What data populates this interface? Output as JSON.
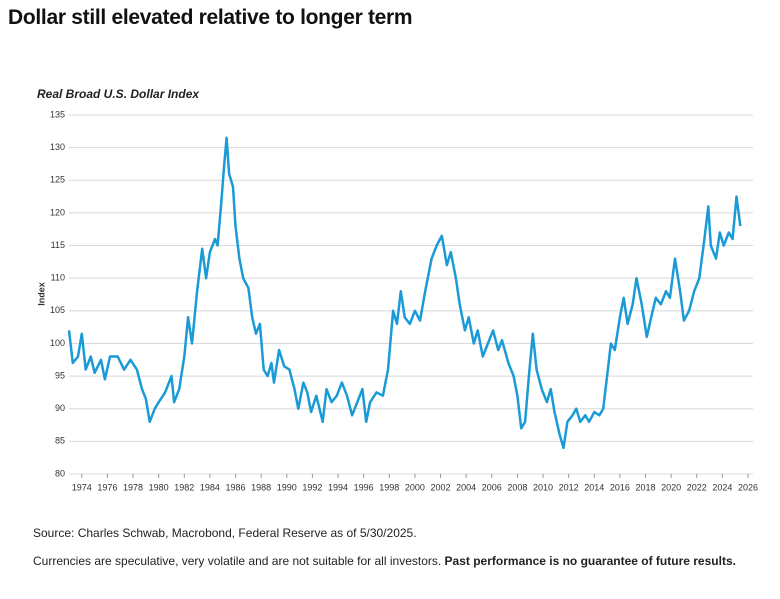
{
  "title": "Dollar still elevated relative to longer term",
  "chart_data": {
    "type": "line",
    "title": "Real Broad U.S. Dollar Index",
    "y_label": "Index",
    "x": [
      1973.0,
      1973.3,
      1973.7,
      1974.0,
      1974.3,
      1974.7,
      1975.0,
      1975.5,
      1975.8,
      1976.2,
      1976.8,
      1977.3,
      1977.8,
      1978.3,
      1978.7,
      1979.0,
      1979.3,
      1979.7,
      1980.0,
      1980.5,
      1981.0,
      1981.2,
      1981.6,
      1982.0,
      1982.3,
      1982.6,
      1983.0,
      1983.4,
      1983.7,
      1984.0,
      1984.4,
      1984.6,
      1984.9,
      1985.1,
      1985.3,
      1985.5,
      1985.8,
      1986.0,
      1986.3,
      1986.6,
      1987.0,
      1987.3,
      1987.6,
      1987.9,
      1988.2,
      1988.5,
      1988.8,
      1989.0,
      1989.4,
      1989.8,
      1990.2,
      1990.6,
      1990.9,
      1991.3,
      1991.6,
      1991.9,
      1992.3,
      1992.8,
      1993.1,
      1993.5,
      1993.9,
      1994.3,
      1994.7,
      1995.1,
      1995.5,
      1995.9,
      1996.2,
      1996.5,
      1997.0,
      1997.5,
      1997.9,
      1998.3,
      1998.6,
      1998.9,
      1999.2,
      1999.6,
      2000.0,
      2000.4,
      2000.8,
      2001.3,
      2001.7,
      2002.1,
      2002.5,
      2002.8,
      2003.2,
      2003.5,
      2003.9,
      2004.2,
      2004.6,
      2004.9,
      2005.3,
      2005.7,
      2006.1,
      2006.5,
      2006.8,
      2007.3,
      2007.7,
      2008.0,
      2008.3,
      2008.6,
      2008.9,
      2009.2,
      2009.5,
      2009.9,
      2010.3,
      2010.6,
      2010.9,
      2011.3,
      2011.6,
      2011.9,
      2012.3,
      2012.6,
      2012.9,
      2013.3,
      2013.6,
      2014.0,
      2014.4,
      2014.7,
      2015.0,
      2015.3,
      2015.6,
      2016.0,
      2016.3,
      2016.6,
      2017.0,
      2017.3,
      2017.7,
      2018.1,
      2018.5,
      2018.8,
      2019.2,
      2019.6,
      2019.9,
      2020.3,
      2020.7,
      2021.0,
      2021.4,
      2021.8,
      2022.2,
      2022.6,
      2022.9,
      2023.1,
      2023.5,
      2023.8,
      2024.1,
      2024.5,
      2024.8,
      2025.1,
      2025.4
    ],
    "series": [
      {
        "name": "Real Broad U.S. Dollar Index",
        "color": "#1a9bd7",
        "values": [
          102,
          97,
          98,
          101.5,
          96,
          98,
          95.5,
          97.5,
          94.5,
          98,
          98,
          96,
          97.5,
          96,
          93,
          91.5,
          88,
          90,
          91,
          92.5,
          95,
          91,
          93,
          98,
          104,
          100,
          108,
          114.5,
          110,
          114,
          116,
          115,
          122,
          127,
          131.5,
          126,
          124,
          118,
          113,
          110,
          108.5,
          104,
          101.5,
          103,
          96,
          95,
          97,
          94,
          99,
          96.5,
          96,
          93,
          90,
          94,
          92.5,
          89.5,
          92,
          88,
          93,
          91,
          92,
          94,
          92,
          89,
          91,
          93,
          88,
          91,
          92.5,
          92,
          96,
          105,
          103,
          108,
          104,
          103,
          105,
          103.5,
          108,
          113,
          115,
          116.5,
          112,
          114,
          110,
          106,
          102,
          104,
          100,
          102,
          98,
          100,
          102,
          99,
          100.5,
          97,
          95,
          92,
          87,
          88,
          95,
          101.5,
          96,
          93,
          91,
          93,
          89.5,
          86,
          84,
          88,
          89,
          90,
          88,
          89,
          88,
          89.5,
          89,
          90,
          95,
          100,
          99,
          104,
          107,
          103,
          106,
          110,
          106,
          101,
          104.5,
          107,
          106,
          108,
          107,
          113,
          108,
          103.5,
          105,
          108,
          110,
          116,
          121,
          115,
          113,
          117,
          115,
          117,
          116,
          122.5,
          118
        ]
      }
    ],
    "xlim": [
      1973,
      2026
    ],
    "ylim": [
      80,
      135
    ],
    "xticks": [
      1974,
      1976,
      1978,
      1980,
      1982,
      1984,
      1986,
      1988,
      1990,
      1992,
      1994,
      1996,
      1998,
      2000,
      2002,
      2004,
      2006,
      2008,
      2010,
      2012,
      2014,
      2016,
      2018,
      2020,
      2022,
      2024,
      2026
    ],
    "yticks": [
      80,
      85,
      90,
      95,
      100,
      105,
      110,
      115,
      120,
      125,
      130,
      135
    ],
    "grid": true
  },
  "footer": {
    "source": "Source: Charles Schwab, Macrobond, Federal Reserve as of 5/30/2025.",
    "note": "Currencies are speculative, very volatile and are not suitable for all investors.",
    "note_emphasis": "Past performance is no guarantee of future results."
  }
}
